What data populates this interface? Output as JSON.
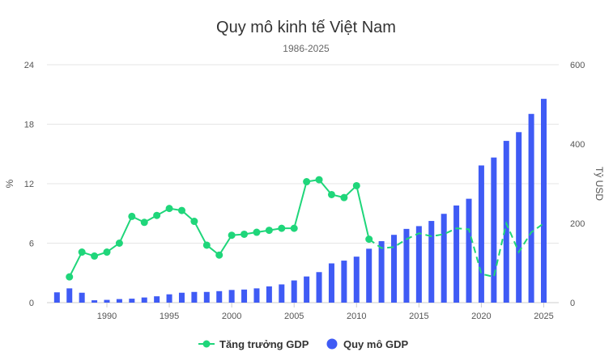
{
  "chart_data": {
    "type": "bar",
    "title": "Quy mô kinh tế Việt Nam",
    "subtitle": "1986-2025",
    "colors": {
      "growth": "#1fd67a",
      "size": "#3f5bf5"
    },
    "y_left": {
      "label": "%",
      "ticks": [
        "0",
        "6",
        "12",
        "18",
        "24"
      ],
      "range": [
        0,
        24
      ]
    },
    "y_right": {
      "label": "Tỷ USD",
      "ticks": [
        "0",
        "200",
        "400",
        "600"
      ],
      "range": [
        0,
        600
      ]
    },
    "x_ticks": [
      "1990",
      "1995",
      "2000",
      "2005",
      "2010",
      "2015",
      "2020",
      "2025"
    ],
    "grid": true,
    "legend_placement": "bottom",
    "series": [
      {
        "name": "Tăng trưởng GDP",
        "type": "line",
        "axis": "left",
        "x": [
          1987,
          1988,
          1989,
          1990,
          1991,
          1992,
          1993,
          1994,
          1995,
          1996,
          1997,
          1998,
          1999,
          2000,
          2001,
          2002,
          2003,
          2004,
          2005,
          2006,
          2007,
          2008,
          2009,
          2010,
          2011,
          2012,
          2013,
          2014,
          2015,
          2016,
          2017,
          2018,
          2019,
          2020,
          2021,
          2022,
          2023,
          2024,
          2025
        ],
        "values": [
          2.6,
          5.1,
          4.7,
          5.1,
          6.0,
          8.7,
          8.1,
          8.8,
          9.5,
          9.3,
          8.2,
          5.8,
          4.8,
          6.8,
          6.9,
          7.1,
          7.3,
          7.5,
          7.5,
          12.2,
          12.4,
          10.9,
          10.6,
          11.8,
          6.4,
          5.5,
          5.6,
          6.4,
          7.0,
          6.7,
          6.9,
          7.5,
          7.4,
          2.9,
          2.6,
          8.0,
          5.1,
          7.1,
          8.0
        ]
      },
      {
        "name": "Quy mô GDP",
        "type": "bar",
        "axis": "right",
        "x": [
          1986,
          1987,
          1988,
          1989,
          1990,
          1991,
          1992,
          1993,
          1994,
          1995,
          1996,
          1997,
          1998,
          1999,
          2000,
          2001,
          2002,
          2003,
          2004,
          2005,
          2006,
          2007,
          2008,
          2009,
          2010,
          2011,
          2012,
          2013,
          2014,
          2015,
          2016,
          2017,
          2018,
          2019,
          2020,
          2021,
          2022,
          2023,
          2024,
          2025
        ],
        "values": [
          26,
          36,
          25,
          6,
          7,
          9,
          10,
          13,
          16,
          21,
          25,
          27,
          27,
          29,
          32,
          33,
          36,
          41,
          46,
          56,
          66,
          77,
          99,
          106,
          116,
          136,
          155,
          171,
          186,
          193,
          206,
          224,
          245,
          262,
          346,
          366,
          408,
          430,
          476,
          514
        ]
      }
    ]
  }
}
